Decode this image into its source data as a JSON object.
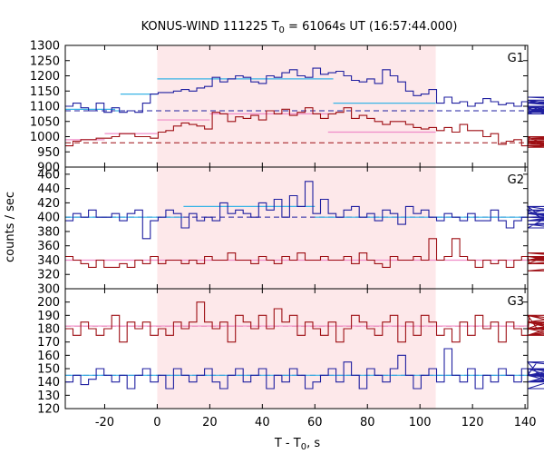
{
  "chart_data": {
    "type": "line",
    "title": "KONUS-WIND 111225 T",
    "title_sub": "0",
    "title_rest": " = 61064s UT (16:57:44.000)",
    "xlabel": "T - T",
    "xlabel_sub": "0",
    "xlabel_rest": ", s",
    "ylabel": "counts / sec",
    "xlim": [
      -35,
      141
    ],
    "xticks": [
      -20,
      0,
      20,
      40,
      60,
      80,
      100,
      120,
      140
    ],
    "shaded_interval": [
      0,
      106
    ],
    "colors": {
      "blue": "#1f1fa0",
      "red": "#9e0f14",
      "light_blue": "#39b4e6",
      "pink": "#f08cc8",
      "shade": "#fde8ea"
    },
    "panels": [
      {
        "label": "G1",
        "ylim": [
          900,
          1300
        ],
        "yticks": [
          900,
          950,
          1000,
          1050,
          1100,
          1150,
          1200,
          1250,
          1300
        ],
        "series": [
          {
            "color": "blue",
            "x0": -35,
            "dx": 2.944,
            "values": [
              1100,
              1110,
              1095,
              1085,
              1110,
              1080,
              1095,
              1080,
              1085,
              1080,
              1110,
              1140,
              1145,
              1145,
              1150,
              1155,
              1150,
              1160,
              1165,
              1195,
              1180,
              1190,
              1200,
              1195,
              1180,
              1175,
              1200,
              1195,
              1210,
              1220,
              1200,
              1195,
              1225,
              1205,
              1210,
              1215,
              1200,
              1185,
              1180,
              1190,
              1175,
              1220,
              1200,
              1180,
              1150,
              1135,
              1140,
              1155,
              1110,
              1130,
              1110,
              1115,
              1100,
              1110,
              1125,
              1115,
              1105,
              1110,
              1100,
              1115,
              1080,
              1095,
              1075,
              1100,
              1080,
              1120,
              1095,
              1115,
              1085,
              1095,
              1120,
              1080,
              1100,
              1090,
              1085,
              1110,
              1080,
              1130,
              1110,
              1085
            ],
            "steps": [
              [
                -35,
                -16,
                1090
              ],
              [
                -16,
                -14,
                1085
              ],
              [
                -14,
                0,
                1140
              ],
              [
                0,
                67,
                1190
              ],
              [
                67,
                106,
                1110
              ]
            ],
            "step_color": "light_blue",
            "bg": 1085
          },
          {
            "color": "red",
            "x0": -35,
            "dx": 2.944,
            "values": [
              970,
              985,
              990,
              990,
              995,
              995,
              1000,
              1010,
              1010,
              1000,
              1000,
              995,
              1015,
              1020,
              1035,
              1045,
              1040,
              1035,
              1025,
              1080,
              1075,
              1050,
              1065,
              1060,
              1070,
              1055,
              1085,
              1075,
              1090,
              1070,
              1080,
              1095,
              1075,
              1060,
              1075,
              1080,
              1095,
              1060,
              1070,
              1060,
              1050,
              1040,
              1050,
              1050,
              1040,
              1030,
              1025,
              1030,
              1020,
              1030,
              1015,
              1040,
              1020,
              1020,
              1000,
              1010,
              975,
              985,
              990,
              970,
              1000,
              985,
              975,
              980,
              965,
              975,
              980,
              985,
              970,
              975,
              985,
              990,
              990,
              995,
              1000,
              990,
              1000,
              985,
              995,
              985
            ],
            "steps": [
              [
                -35,
                -20,
                990
              ],
              [
                -20,
                0,
                1010
              ],
              [
                0,
                20,
                1055
              ],
              [
                20,
                65,
                1075
              ],
              [
                65,
                106,
                1015
              ]
            ],
            "step_color": "pink",
            "bg": 980
          }
        ]
      },
      {
        "label": "G2",
        "ylim": [
          300,
          470
        ],
        "yticks": [
          300,
          320,
          340,
          360,
          380,
          400,
          420,
          440,
          460
        ],
        "series": [
          {
            "color": "blue",
            "x0": -35,
            "dx": 2.944,
            "values": [
              395,
              405,
              400,
              410,
              400,
              400,
              405,
              395,
              405,
              410,
              370,
              395,
              400,
              410,
              405,
              385,
              405,
              395,
              400,
              395,
              420,
              405,
              410,
              405,
              400,
              420,
              410,
              425,
              400,
              430,
              415,
              450,
              405,
              425,
              405,
              400,
              410,
              415,
              400,
              405,
              395,
              410,
              405,
              390,
              415,
              405,
              410,
              400,
              395,
              405,
              400,
              395,
              405,
              395,
              395,
              410,
              395,
              385,
              395,
              400,
              415,
              405,
              410,
              390,
              385,
              415,
              405,
              395,
              395,
              410,
              405,
              400,
              395,
              410,
              405,
              390,
              400,
              405,
              395,
              410
            ],
            "steps": [
              [
                -35,
                10,
                400
              ],
              [
                10,
                60,
                415
              ],
              [
                60,
                141,
                400
              ]
            ],
            "step_color": "light_blue",
            "bg": 400
          },
          {
            "color": "red",
            "x0": -35,
            "dx": 2.944,
            "values": [
              345,
              340,
              335,
              330,
              340,
              330,
              330,
              335,
              330,
              340,
              335,
              345,
              335,
              340,
              340,
              335,
              340,
              335,
              345,
              340,
              340,
              350,
              340,
              340,
              335,
              345,
              340,
              335,
              345,
              340,
              350,
              340,
              340,
              345,
              340,
              340,
              345,
              335,
              350,
              340,
              335,
              330,
              345,
              340,
              340,
              345,
              340,
              370,
              340,
              345,
              370,
              345,
              340,
              330,
              340,
              335,
              340,
              330,
              340,
              345,
              335,
              340,
              345,
              340,
              345,
              340,
              350,
              345,
              345,
              340,
              350,
              340,
              335,
              345,
              325,
              340,
              345,
              335,
              340,
              345
            ],
            "steps": [
              [
                -35,
                141,
                340
              ]
            ],
            "step_color": "pink",
            "bg": 340
          }
        ]
      },
      {
        "label": "G3",
        "ylim": [
          120,
          210
        ],
        "yticks": [
          120,
          130,
          140,
          150,
          160,
          170,
          180,
          190,
          200
        ],
        "series": [
          {
            "color": "red",
            "x0": -35,
            "dx": 2.944,
            "values": [
              180,
              175,
              185,
              180,
              175,
              180,
              190,
              170,
              185,
              180,
              185,
              175,
              180,
              175,
              185,
              180,
              185,
              200,
              185,
              180,
              185,
              170,
              190,
              185,
              180,
              190,
              180,
              195,
              185,
              190,
              175,
              185,
              180,
              175,
              185,
              170,
              180,
              190,
              185,
              180,
              175,
              185,
              190,
              170,
              185,
              175,
              190,
              185,
              175,
              180,
              170,
              185,
              175,
              190,
              180,
              185,
              170,
              185,
              180,
              175,
              190,
              180,
              185,
              180,
              175,
              185,
              190,
              180,
              185,
              175,
              180,
              185,
              175,
              190,
              180,
              185,
              180,
              175,
              185,
              180
            ],
            "steps": [
              [
                -35,
                141,
                182
              ]
            ],
            "step_color": "pink",
            "bg": 182
          },
          {
            "color": "blue",
            "x0": -35,
            "dx": 2.944,
            "values": [
              140,
              145,
              138,
              142,
              150,
              145,
              140,
              145,
              135,
              145,
              150,
              140,
              145,
              135,
              150,
              145,
              140,
              145,
              150,
              140,
              135,
              145,
              150,
              140,
              145,
              150,
              135,
              145,
              140,
              150,
              145,
              135,
              140,
              145,
              150,
              140,
              155,
              145,
              135,
              150,
              145,
              140,
              150,
              160,
              145,
              135,
              145,
              150,
              140,
              165,
              145,
              140,
              150,
              135,
              145,
              140,
              150,
              145,
              140,
              150,
              145,
              155,
              140,
              145,
              150,
              140,
              145,
              135,
              150,
              145,
              140,
              145,
              150,
              140,
              145,
              155,
              145,
              140,
              150,
              145
            ],
            "steps": [
              [
                -35,
                141,
                145
              ]
            ],
            "step_color": "light_blue",
            "bg": 145
          }
        ]
      }
    ]
  }
}
